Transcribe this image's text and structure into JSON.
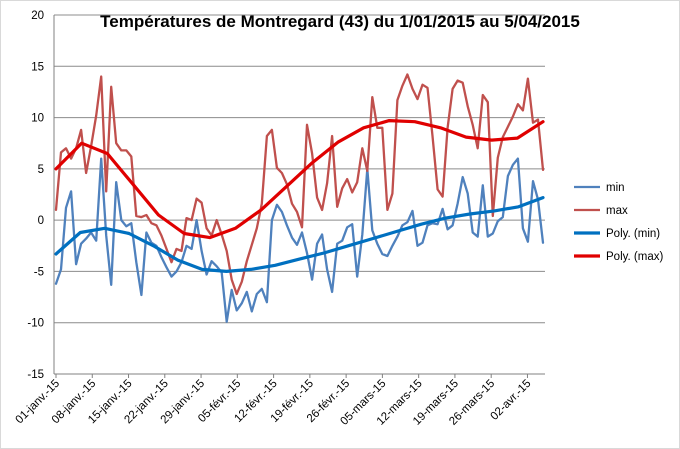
{
  "chart_data": {
    "type": "line",
    "title": "Températures de Montregard (43) du 1/01/2015 au 5/04/2015",
    "xlabel": "",
    "ylabel": "",
    "ylim": [
      -15,
      20
    ],
    "yticks": [
      -15,
      -10,
      -5,
      0,
      5,
      10,
      15,
      20
    ],
    "x_start": "2015-01-01",
    "x_end": "2015-04-05",
    "x_tick_labels": [
      "01-janv.-15",
      "08-janv.-15",
      "15-janv.-15",
      "22-janv.-15",
      "29-janv.-15",
      "05-févr.-15",
      "12-févr.-15",
      "19-févr.-15",
      "26-févr.-15",
      "05-mars-15",
      "12-mars-15",
      "19-mars-15",
      "26-mars-15",
      "02-avr.-15"
    ],
    "grid": true,
    "legend_position": "right",
    "series": [
      {
        "name": "min",
        "color": "#4F81BD",
        "style": "data",
        "values": [
          -6.2,
          -4.8,
          1.2,
          2.8,
          -4.3,
          -2.3,
          -1.8,
          -1.2,
          -2.0,
          6.0,
          -1.5,
          -6.3,
          3.7,
          0.0,
          -0.6,
          -0.3,
          -4.1,
          -7.3,
          -1.2,
          -2.2,
          -2.5,
          -3.6,
          -4.6,
          -5.5,
          -5.0,
          -4.1,
          -2.5,
          -2.8,
          0.0,
          -3.0,
          -5.3,
          -4.0,
          -4.5,
          -5.1,
          -9.9,
          -6.8,
          -8.8,
          -8.1,
          -7.0,
          -8.9,
          -7.2,
          -6.7,
          -8.0,
          0.0,
          1.5,
          0.8,
          -0.5,
          -1.7,
          -2.4,
          -1.2,
          -3.2,
          -5.8,
          -2.3,
          -1.4,
          -4.8,
          -7.0,
          -2.3,
          -2.0,
          -0.7,
          -0.4,
          -5.5,
          -1.4,
          5.0,
          -1.0,
          -2.3,
          -3.3,
          -3.5,
          -2.5,
          -1.6,
          -0.5,
          -0.2,
          0.9,
          -2.5,
          -2.2,
          -0.5,
          -0.3,
          -0.4,
          1.1,
          -0.9,
          -0.5,
          1.6,
          4.2,
          2.6,
          -1.2,
          -1.6,
          3.4,
          -1.6,
          -1.3,
          -0.1,
          0.3,
          4.3,
          5.4,
          6.0,
          -0.8,
          -2.1,
          3.8,
          2.0,
          -2.2
        ]
      },
      {
        "name": "max",
        "color": "#C0504D",
        "style": "data",
        "values": [
          1.0,
          6.6,
          7.0,
          6.0,
          7.0,
          8.8,
          4.6,
          7.2,
          10.2,
          14.0,
          2.8,
          13.0,
          7.5,
          6.8,
          6.8,
          6.2,
          0.4,
          0.3,
          0.5,
          -0.3,
          -0.5,
          -1.5,
          -2.8,
          -4.1,
          -2.8,
          -3.0,
          0.2,
          0.0,
          2.1,
          1.7,
          -0.8,
          -1.5,
          0.0,
          -1.4,
          -3.0,
          -5.8,
          -7.2,
          -6.0,
          -4.0,
          -2.4,
          -0.8,
          1.6,
          8.2,
          8.8,
          5.1,
          4.6,
          3.5,
          1.6,
          0.8,
          -0.7,
          9.3,
          6.5,
          2.2,
          1.0,
          3.6,
          8.2,
          1.3,
          3.1,
          4.0,
          2.7,
          3.7,
          7.0,
          4.8,
          12.0,
          9.0,
          9.0,
          1.0,
          2.6,
          11.7,
          13.1,
          14.2,
          12.8,
          11.8,
          13.2,
          12.9,
          8.2,
          3.0,
          2.3,
          9.0,
          12.8,
          13.6,
          13.4,
          11.1,
          9.3,
          7.0,
          12.2,
          11.5,
          0.4,
          6.1,
          8.1,
          9.1,
          10.1,
          11.3,
          10.7,
          13.8,
          9.5,
          9.8,
          4.9
        ]
      },
      {
        "name": "Poly. (min)",
        "color": "#0070C0",
        "style": "trend",
        "values": [
          -3.3,
          -1.2,
          -0.8,
          -1.3,
          -2.5,
          -3.9,
          -4.8,
          -5.0,
          -4.8,
          -4.4,
          -3.8,
          -3.2,
          -2.5,
          -1.8,
          -1.1,
          -0.4,
          0.2,
          0.6,
          0.9,
          1.3,
          2.2
        ]
      },
      {
        "name": "Poly. (max)",
        "color": "#E00000",
        "style": "trend",
        "values": [
          5.0,
          7.5,
          6.5,
          3.5,
          0.5,
          -1.3,
          -1.7,
          -0.8,
          1.0,
          3.3,
          5.6,
          7.6,
          9.0,
          9.7,
          9.6,
          9.0,
          8.1,
          7.8,
          8.0,
          9.6
        ]
      }
    ]
  }
}
